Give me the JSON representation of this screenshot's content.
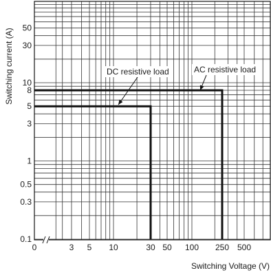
{
  "chart_data": {
    "type": "line",
    "xlabel": "Switching Voltage (V)",
    "ylabel": "Switching current (A)",
    "x_scale": "log",
    "y_scale": "log",
    "xlim": [
      0.3,
      800
    ],
    "ylim": [
      0.1,
      100
    ],
    "grid": true,
    "x_tick_labels": [
      "0",
      "3",
      "5",
      "10",
      "30",
      "50",
      "100",
      "250",
      "500"
    ],
    "x_tick_values": [
      0.3,
      3,
      5,
      10,
      30,
      50,
      100,
      250,
      500
    ],
    "y_tick_labels": [
      "0.1",
      "0.3",
      "0.5",
      "1",
      "3",
      "5",
      "8",
      "10",
      "30",
      "50"
    ],
    "y_tick_values": [
      0.1,
      0.3,
      0.5,
      1,
      3,
      5,
      8,
      10,
      30,
      50
    ],
    "series": [
      {
        "name": "DC resistive load",
        "x": [
          0.3,
          30,
          30
        ],
        "y": [
          5,
          5,
          0.1
        ]
      },
      {
        "name": "AC resistive load",
        "x": [
          0.3,
          250,
          250
        ],
        "y": [
          8,
          8,
          0.1
        ]
      }
    ],
    "annotations": [
      {
        "text": "DC resistive load",
        "series": 0
      },
      {
        "text": "AC resistive load",
        "series": 1
      }
    ]
  }
}
